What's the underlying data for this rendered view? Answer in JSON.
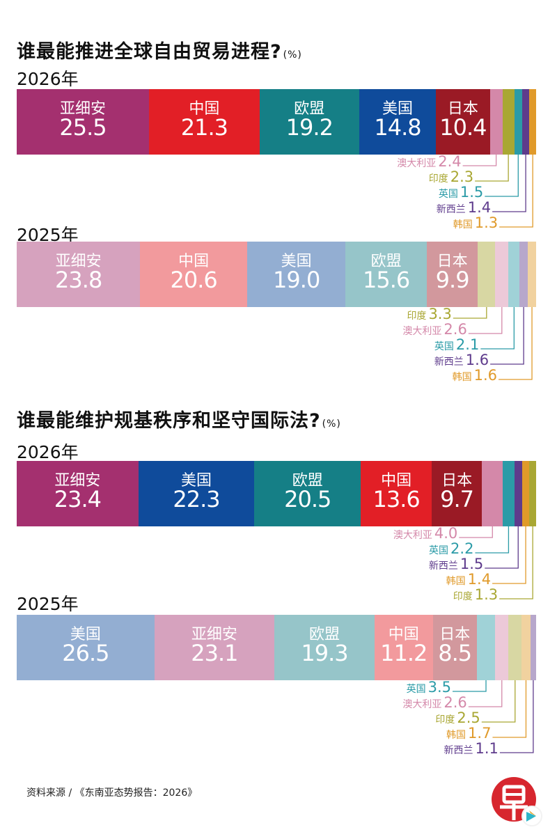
{
  "colors": {
    "亚细安": "#a4306f",
    "中国": "#e21f26",
    "欧盟": "#157f86",
    "美国": "#0f4b9b",
    "日本": "#9a1a25",
    "澳大利亚": "#d488a9",
    "印度": "#a9a733",
    "英国": "#2b9ba7",
    "新西兰": "#5e3b8c",
    "韩国": "#e09a2a"
  },
  "chart_data": [
    {
      "type": "bar",
      "title": "谁最能推进全球自由贸易进程?",
      "unit": "(%)",
      "year": "2026年",
      "style": "solid",
      "segments": [
        {
          "name": "亚细安",
          "value": 25.5
        },
        {
          "name": "中国",
          "value": 21.3
        },
        {
          "name": "欧盟",
          "value": 19.2
        },
        {
          "name": "美国",
          "value": 14.8
        },
        {
          "name": "日本",
          "value": 10.4
        },
        {
          "name": "澳大利亚",
          "value": 2.4
        },
        {
          "name": "印度",
          "value": 2.3
        },
        {
          "name": "英国",
          "value": 1.5
        },
        {
          "name": "新西兰",
          "value": 1.4
        },
        {
          "name": "韩国",
          "value": 1.3
        }
      ]
    },
    {
      "type": "bar",
      "year": "2025年",
      "style": "light",
      "segments": [
        {
          "name": "亚细安",
          "value": 23.8
        },
        {
          "name": "中国",
          "value": 20.6
        },
        {
          "name": "美国",
          "value": 19.0
        },
        {
          "name": "欧盟",
          "value": 15.6
        },
        {
          "name": "日本",
          "value": 9.9
        },
        {
          "name": "印度",
          "value": 3.3
        },
        {
          "name": "澳大利亚",
          "value": 2.6
        },
        {
          "name": "英国",
          "value": 2.1
        },
        {
          "name": "新西兰",
          "value": 1.6
        },
        {
          "name": "韩国",
          "value": 1.6
        }
      ]
    },
    {
      "type": "bar",
      "title": "谁最能维护规基秩序和坚守国际法?",
      "unit": "(%)",
      "year": "2026年",
      "style": "solid",
      "segments": [
        {
          "name": "亚细安",
          "value": 23.4
        },
        {
          "name": "美国",
          "value": 22.3
        },
        {
          "name": "欧盟",
          "value": 20.5
        },
        {
          "name": "中国",
          "value": 13.6
        },
        {
          "name": "日本",
          "value": 9.7
        },
        {
          "name": "澳大利亚",
          "value": 4.0
        },
        {
          "name": "英国",
          "value": 2.2
        },
        {
          "name": "新西兰",
          "value": 1.5
        },
        {
          "name": "韩国",
          "value": 1.4
        },
        {
          "name": "印度",
          "value": 1.3
        }
      ]
    },
    {
      "type": "bar",
      "year": "2025年",
      "style": "light",
      "segments": [
        {
          "name": "美国",
          "value": 26.5
        },
        {
          "name": "亚细安",
          "value": 23.1
        },
        {
          "name": "欧盟",
          "value": 19.3
        },
        {
          "name": "中国",
          "value": 11.2
        },
        {
          "name": "日本",
          "value": 8.5
        },
        {
          "name": "英国",
          "value": 3.5
        },
        {
          "name": "澳大利亚",
          "value": 2.6
        },
        {
          "name": "印度",
          "value": 2.5
        },
        {
          "name": "韩国",
          "value": 1.7
        },
        {
          "name": "新西兰",
          "value": 1.1
        }
      ]
    }
  ],
  "source": "资料来源 / 《东南亚态势报告：2026》",
  "logo_icon": "zaobao-logo-icon"
}
